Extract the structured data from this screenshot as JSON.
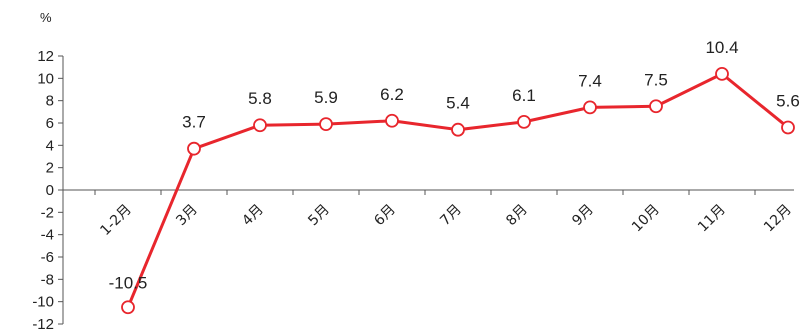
{
  "chart_data": {
    "type": "line",
    "unit": "%",
    "categories": [
      "1-2月",
      "3月",
      "4月",
      "5月",
      "6月",
      "7月",
      "8月",
      "9月",
      "10月",
      "11月",
      "12月"
    ],
    "values": [
      -10.5,
      3.7,
      5.8,
      5.9,
      6.2,
      5.4,
      6.1,
      7.4,
      7.5,
      10.4,
      5.6
    ],
    "data_labels": [
      "-10.5",
      "3.7",
      "5.8",
      "5.9",
      "6.2",
      "5.4",
      "6.1",
      "7.4",
      "7.5",
      "10.4",
      "5.6"
    ],
    "ylim": [
      -12,
      12
    ],
    "yticks": [
      12,
      10,
      8,
      6,
      4,
      2,
      0,
      -2,
      -4,
      -6,
      -8,
      -10,
      -12
    ],
    "grid": false,
    "legend": "none",
    "line_color": "#e8262d",
    "marker_fill": "#ffffff"
  }
}
